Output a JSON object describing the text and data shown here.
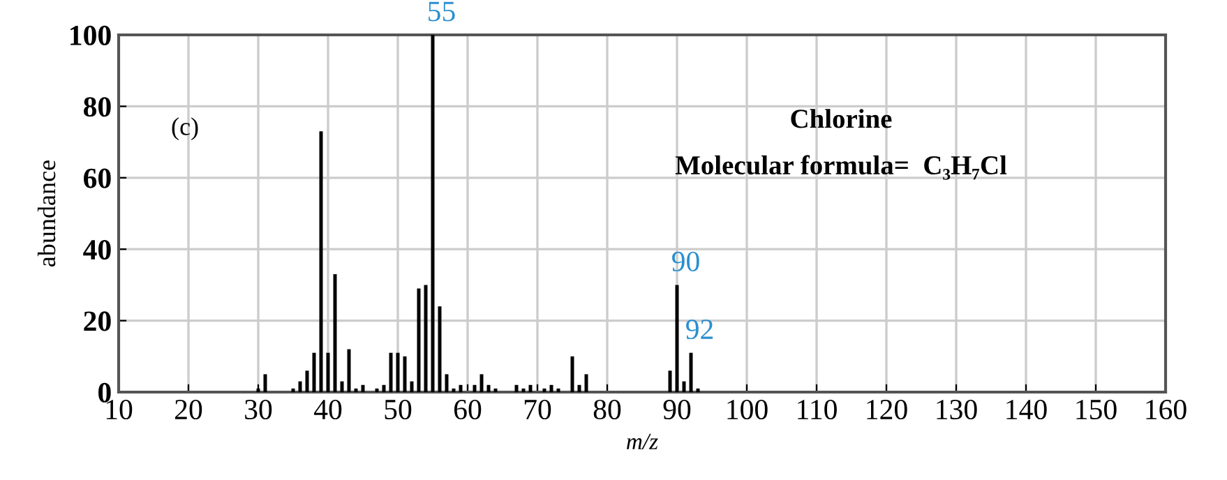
{
  "chart_data": {
    "type": "bar",
    "x": [
      30,
      31,
      35,
      36,
      37,
      38,
      39,
      40,
      41,
      42,
      43,
      44,
      45,
      47,
      48,
      49,
      50,
      51,
      52,
      53,
      54,
      55,
      56,
      57,
      58,
      59,
      61,
      62,
      63,
      64,
      67,
      68,
      69,
      71,
      72,
      73,
      75,
      76,
      77,
      89,
      90,
      91,
      92,
      93
    ],
    "values": [
      1,
      5,
      1,
      3,
      6,
      11,
      73,
      11,
      33,
      3,
      12,
      1,
      2,
      1,
      2,
      11,
      11,
      10,
      3,
      29,
      30,
      100,
      24,
      5,
      1,
      2,
      2,
      5,
      2,
      1,
      2,
      1,
      2,
      1,
      2,
      1,
      10,
      2,
      5,
      6,
      30,
      3,
      11,
      1
    ],
    "color": "#000000",
    "xlabel": "m/z",
    "ylabel": "abundance",
    "xlim": [
      10,
      160
    ],
    "xticks": [
      10,
      20,
      30,
      40,
      50,
      60,
      70,
      80,
      90,
      100,
      110,
      120,
      130,
      140,
      150,
      160
    ],
    "ylim": [
      0,
      100
    ],
    "yticks": [
      0,
      20,
      40,
      60,
      80,
      100
    ],
    "grid": true,
    "annotations": [
      {
        "text": "55",
        "x": 55,
        "y": 100
      },
      {
        "text": "90",
        "x": 90,
        "y": 30
      },
      {
        "text": "92",
        "x": 92,
        "y": 11
      },
      "(c)",
      "Chlorine",
      "Molecular formula=  C₃H₇Cl"
    ]
  }
}
